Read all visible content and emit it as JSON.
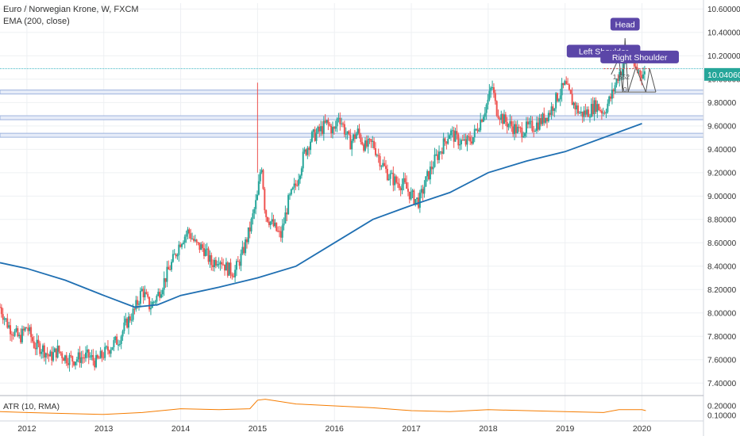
{
  "header": {
    "symbol_line": "Euro / Norwegian Krone, W, FXCM",
    "indicator_line": "EMA (200, close)",
    "atr_label": "ATR (10, RMA)"
  },
  "colors": {
    "up": "#26a69a",
    "down": "#ef5350",
    "ema": "#1f6fb2",
    "atr": "#f57c00",
    "band": "#9fb4de",
    "callout": "#5b46a8",
    "price_tag": "#26a69a"
  },
  "chart_data": {
    "type": "candlestick",
    "title": "Euro / Norwegian Krone, W, FXCM",
    "ylim": [
      7.3,
      10.65
    ],
    "y_ticks": [
      "10.60000",
      "10.40000",
      "10.20000",
      "10.00000",
      "9.80000",
      "9.60000",
      "9.40000",
      "9.20000",
      "9.00000",
      "8.80000",
      "8.60000",
      "8.40000",
      "8.20000",
      "8.00000",
      "7.80000",
      "7.60000",
      "7.40000"
    ],
    "y_tick_values": [
      10.6,
      10.4,
      10.2,
      10.0,
      9.8,
      9.6,
      9.4,
      9.2,
      9.0,
      8.8,
      8.6,
      8.4,
      8.2,
      8.0,
      7.8,
      7.6,
      7.4
    ],
    "x_ticks": [
      "2012",
      "2013",
      "2014",
      "2015",
      "2016",
      "2017",
      "2018",
      "2019",
      "2020"
    ],
    "x_tick_years": [
      2012,
      2013,
      2014,
      2015,
      2016,
      2017,
      2018,
      2019,
      2020
    ],
    "x_range": [
      2011.65,
      2020.8
    ],
    "price_path": [
      [
        2011.65,
        8.05
      ],
      [
        2011.75,
        7.9
      ],
      [
        2011.9,
        7.78
      ],
      [
        2012.0,
        7.88
      ],
      [
        2012.1,
        7.72
      ],
      [
        2012.2,
        7.7
      ],
      [
        2012.3,
        7.62
      ],
      [
        2012.4,
        7.68
      ],
      [
        2012.5,
        7.62
      ],
      [
        2012.6,
        7.6
      ],
      [
        2012.7,
        7.62
      ],
      [
        2012.8,
        7.63
      ],
      [
        2012.9,
        7.58
      ],
      [
        2013.0,
        7.65
      ],
      [
        2013.1,
        7.72
      ],
      [
        2013.2,
        7.78
      ],
      [
        2013.3,
        7.92
      ],
      [
        2013.4,
        8.02
      ],
      [
        2013.5,
        8.2
      ],
      [
        2013.6,
        8.05
      ],
      [
        2013.7,
        8.15
      ],
      [
        2013.8,
        8.3
      ],
      [
        2013.9,
        8.45
      ],
      [
        2014.0,
        8.62
      ],
      [
        2014.1,
        8.7
      ],
      [
        2014.2,
        8.58
      ],
      [
        2014.3,
        8.55
      ],
      [
        2014.4,
        8.42
      ],
      [
        2014.5,
        8.48
      ],
      [
        2014.6,
        8.38
      ],
      [
        2014.7,
        8.35
      ],
      [
        2014.8,
        8.5
      ],
      [
        2014.9,
        8.72
      ],
      [
        2015.0,
        9.0
      ],
      [
        2015.05,
        9.3
      ],
      [
        2015.1,
        8.85
      ],
      [
        2015.2,
        8.75
      ],
      [
        2015.3,
        8.65
      ],
      [
        2015.4,
        8.95
      ],
      [
        2015.5,
        9.1
      ],
      [
        2015.6,
        9.35
      ],
      [
        2015.7,
        9.5
      ],
      [
        2015.8,
        9.55
      ],
      [
        2015.9,
        9.62
      ],
      [
        2016.0,
        9.55
      ],
      [
        2016.05,
        9.7
      ],
      [
        2016.1,
        9.62
      ],
      [
        2016.2,
        9.45
      ],
      [
        2016.3,
        9.55
      ],
      [
        2016.4,
        9.42
      ],
      [
        2016.5,
        9.45
      ],
      [
        2016.6,
        9.3
      ],
      [
        2016.7,
        9.18
      ],
      [
        2016.8,
        9.12
      ],
      [
        2016.9,
        9.1
      ],
      [
        2017.0,
        9.0
      ],
      [
        2017.1,
        8.95
      ],
      [
        2017.2,
        9.15
      ],
      [
        2017.3,
        9.3
      ],
      [
        2017.4,
        9.42
      ],
      [
        2017.5,
        9.55
      ],
      [
        2017.6,
        9.48
      ],
      [
        2017.7,
        9.45
      ],
      [
        2017.8,
        9.5
      ],
      [
        2017.9,
        9.65
      ],
      [
        2018.0,
        9.82
      ],
      [
        2018.05,
        9.95
      ],
      [
        2018.1,
        9.75
      ],
      [
        2018.2,
        9.65
      ],
      [
        2018.3,
        9.6
      ],
      [
        2018.4,
        9.55
      ],
      [
        2018.5,
        9.58
      ],
      [
        2018.6,
        9.6
      ],
      [
        2018.7,
        9.65
      ],
      [
        2018.8,
        9.72
      ],
      [
        2018.9,
        9.85
      ],
      [
        2019.0,
        9.95
      ],
      [
        2019.1,
        9.8
      ],
      [
        2019.2,
        9.7
      ],
      [
        2019.3,
        9.72
      ],
      [
        2019.4,
        9.78
      ],
      [
        2019.5,
        9.72
      ],
      [
        2019.6,
        9.85
      ],
      [
        2019.7,
        10.05
      ],
      [
        2019.8,
        10.15
      ],
      [
        2019.85,
        10.28
      ],
      [
        2019.9,
        10.1
      ],
      [
        2020.0,
        10.05
      ],
      [
        2020.05,
        10.04
      ]
    ],
    "ema_path": [
      [
        2011.65,
        8.43
      ],
      [
        2012.0,
        8.38
      ],
      [
        2012.5,
        8.28
      ],
      [
        2013.0,
        8.15
      ],
      [
        2013.4,
        8.05
      ],
      [
        2013.7,
        8.07
      ],
      [
        2014.0,
        8.15
      ],
      [
        2014.5,
        8.22
      ],
      [
        2015.0,
        8.3
      ],
      [
        2015.5,
        8.4
      ],
      [
        2016.0,
        8.6
      ],
      [
        2016.5,
        8.8
      ],
      [
        2017.0,
        8.92
      ],
      [
        2017.5,
        9.03
      ],
      [
        2018.0,
        9.2
      ],
      [
        2018.5,
        9.3
      ],
      [
        2019.0,
        9.38
      ],
      [
        2019.5,
        9.5
      ],
      [
        2020.0,
        9.62
      ]
    ],
    "horizontal_bands": [
      9.89,
      9.67,
      9.52
    ],
    "cyan_line": 10.09,
    "last_price": "10.04060",
    "last_price_value": 10.0406,
    "atr": {
      "ticks": [
        "0.20000",
        "0.10000"
      ],
      "tick_values": [
        0.2,
        0.1
      ],
      "ylim": [
        0.05,
        0.3
      ],
      "path": [
        [
          2011.65,
          0.14
        ],
        [
          2012.0,
          0.13
        ],
        [
          2012.5,
          0.12
        ],
        [
          2013.0,
          0.11
        ],
        [
          2013.5,
          0.13
        ],
        [
          2014.0,
          0.17
        ],
        [
          2014.5,
          0.16
        ],
        [
          2014.9,
          0.17
        ],
        [
          2015.0,
          0.26
        ],
        [
          2015.1,
          0.27
        ],
        [
          2015.5,
          0.22
        ],
        [
          2016.0,
          0.2
        ],
        [
          2016.5,
          0.18
        ],
        [
          2017.0,
          0.15
        ],
        [
          2017.5,
          0.14
        ],
        [
          2018.0,
          0.16
        ],
        [
          2018.5,
          0.15
        ],
        [
          2019.0,
          0.14
        ],
        [
          2019.5,
          0.13
        ],
        [
          2019.7,
          0.16
        ],
        [
          2020.0,
          0.16
        ],
        [
          2020.05,
          0.15
        ]
      ]
    },
    "annotations": [
      {
        "text": "Head",
        "x": 2019.78,
        "y": 10.47
      },
      {
        "text": "Left Shoulder",
        "x": 2019.5,
        "y": 10.24
      },
      {
        "text": "Right Shoulder",
        "x": 2019.97,
        "y": 10.19
      },
      {
        "text": "0",
        "x": 2019.78,
        "y": 9.89
      },
      {
        "text": "1.652",
        "x": 2019.73,
        "y": 10.0
      }
    ]
  }
}
